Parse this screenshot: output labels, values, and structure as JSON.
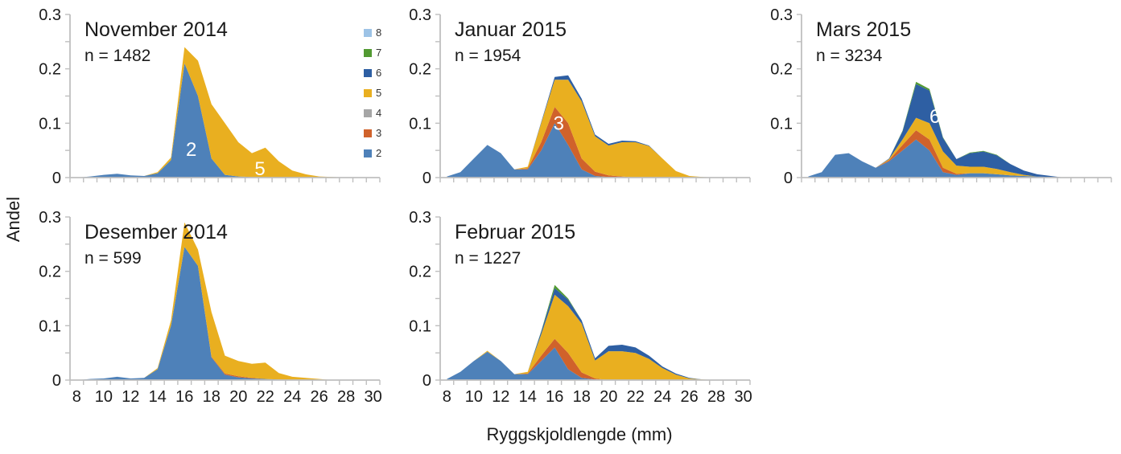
{
  "figure": {
    "background": "#FFFFFF"
  },
  "chart_data": {
    "type": "area",
    "stacked": true,
    "x": [
      8,
      9,
      10,
      11,
      12,
      13,
      14,
      15,
      16,
      17,
      18,
      19,
      20,
      21,
      22,
      23,
      24,
      25,
      26,
      27,
      28,
      29,
      30
    ],
    "xlabel": "Ryggskjoldlengde (mm)",
    "ylabel": "Andel",
    "ylim": [
      0,
      0.3
    ],
    "yticks": [
      0,
      0.1,
      0.2,
      0.3
    ],
    "ytick_labels": [
      "0",
      "0.1",
      "0.2",
      "0.3"
    ],
    "y_minor_step": 0.05,
    "xticks": [
      8,
      10,
      12,
      14,
      16,
      18,
      20,
      22,
      24,
      26,
      28,
      30
    ],
    "xtick_labels": [
      "8",
      "10",
      "12",
      "14",
      "16",
      "18",
      "20",
      "22",
      "24",
      "26",
      "28",
      "30"
    ],
    "grid": false,
    "axis_color": "#BFBFBF",
    "text_color": "#1A1A1A",
    "annotation_color": "#FFFFFF",
    "series_order": [
      "2",
      "3",
      "4",
      "5",
      "6",
      "7",
      "8"
    ],
    "series_colors": {
      "2": "#4E81B9",
      "3": "#D0622B",
      "4": "#A6A6A6",
      "5": "#E9AF20",
      "6": "#2E5FA3",
      "7": "#529A32",
      "8": "#9DC3E6"
    },
    "legend": {
      "position": "right-of-first-panel",
      "entries": [
        {
          "label": "8",
          "color": "#9DC3E6"
        },
        {
          "label": "7",
          "color": "#529A32"
        },
        {
          "label": "6",
          "color": "#2E5FA3"
        },
        {
          "label": "5",
          "color": "#E9AF20"
        },
        {
          "label": "4",
          "color": "#A6A6A6"
        },
        {
          "label": "3",
          "color": "#D0622B"
        },
        {
          "label": "2",
          "color": "#4E81B9"
        }
      ]
    },
    "panels": [
      {
        "title": "November 2014",
        "n_label": "n = 1482",
        "row": 0,
        "col": 0,
        "series": {
          "2": [
            0,
            0.002,
            0.005,
            0.007,
            0.004,
            0.003,
            0.008,
            0.032,
            0.21,
            0.15,
            0.035,
            0.005,
            0.002,
            0.001,
            0.001,
            0,
            0,
            0,
            0,
            0,
            0,
            0,
            0
          ],
          "5": [
            0,
            0,
            0,
            0,
            0,
            0,
            0.002,
            0.005,
            0.03,
            0.065,
            0.1,
            0.095,
            0.063,
            0.044,
            0.054,
            0.03,
            0.013,
            0.006,
            0.002,
            0.001,
            0,
            0,
            0
          ]
        },
        "annotations": [
          {
            "text": "2",
            "x": 16.5,
            "y": 0.052
          },
          {
            "text": "5",
            "x": 21.6,
            "y": 0.016
          }
        ]
      },
      {
        "title": "Januar 2015",
        "n_label": "n = 1954",
        "row": 0,
        "col": 1,
        "series": {
          "2": [
            0.002,
            0.01,
            0.035,
            0.06,
            0.045,
            0.015,
            0.015,
            0.05,
            0.1,
            0.06,
            0.015,
            0.003,
            0.001,
            0.001,
            0,
            0,
            0,
            0,
            0,
            0,
            0,
            0,
            0
          ],
          "3": [
            0,
            0,
            0,
            0,
            0,
            0,
            0.002,
            0.015,
            0.03,
            0.04,
            0.02,
            0.008,
            0.003,
            0.001,
            0,
            0,
            0,
            0,
            0,
            0,
            0,
            0,
            0
          ],
          "5": [
            0,
            0,
            0,
            0,
            0,
            0,
            0.003,
            0.035,
            0.05,
            0.08,
            0.105,
            0.065,
            0.055,
            0.063,
            0.065,
            0.058,
            0.035,
            0.012,
            0.003,
            0.001,
            0,
            0,
            0
          ],
          "6": [
            0,
            0,
            0,
            0,
            0,
            0,
            0,
            0.002,
            0.005,
            0.008,
            0.005,
            0.003,
            0.003,
            0.003,
            0.002,
            0.001,
            0,
            0,
            0,
            0,
            0,
            0,
            0
          ]
        },
        "annotations": [
          {
            "text": "3",
            "x": 16.3,
            "y": 0.1
          }
        ]
      },
      {
        "title": "Mars 2015",
        "n_label": "n = 3234",
        "row": 0,
        "col": 2,
        "series": {
          "2": [
            0.002,
            0.01,
            0.042,
            0.045,
            0.03,
            0.018,
            0.03,
            0.05,
            0.07,
            0.05,
            0.01,
            0.005,
            0.008,
            0.008,
            0.006,
            0.004,
            0.003,
            0.002,
            0.001,
            0,
            0,
            0,
            0
          ],
          "3": [
            0,
            0,
            0,
            0,
            0,
            0,
            0.002,
            0.01,
            0.017,
            0.02,
            0.008,
            0.002,
            0,
            0,
            0,
            0,
            0,
            0,
            0,
            0,
            0,
            0,
            0
          ],
          "5": [
            0,
            0,
            0,
            0,
            0,
            0,
            0.002,
            0.01,
            0.023,
            0.03,
            0.03,
            0.015,
            0.012,
            0.012,
            0.01,
            0.006,
            0.002,
            0,
            0,
            0,
            0,
            0,
            0
          ],
          "6": [
            0,
            0,
            0,
            0,
            0,
            0,
            0.001,
            0.015,
            0.062,
            0.06,
            0.025,
            0.012,
            0.025,
            0.028,
            0.025,
            0.015,
            0.008,
            0.004,
            0.002,
            0,
            0,
            0,
            0
          ],
          "7": [
            0,
            0,
            0,
            0,
            0,
            0,
            0,
            0.001,
            0.004,
            0.003,
            0.001,
            0,
            0.001,
            0.001,
            0.001,
            0,
            0,
            0,
            0,
            0,
            0,
            0,
            0
          ]
        },
        "annotations": [
          {
            "text": "6",
            "x": 17.4,
            "y": 0.112
          }
        ]
      },
      {
        "title": "Desember 2014",
        "n_label": "n = 599",
        "row": 1,
        "col": 0,
        "series": {
          "2": [
            0,
            0.002,
            0.003,
            0.006,
            0.003,
            0.004,
            0.02,
            0.1,
            0.245,
            0.21,
            0.042,
            0.01,
            0.005,
            0.003,
            0.002,
            0.001,
            0,
            0,
            0,
            0,
            0,
            0,
            0
          ],
          "3": [
            0,
            0,
            0,
            0,
            0,
            0,
            0,
            0,
            0,
            0,
            0.001,
            0.002,
            0.002,
            0.001,
            0,
            0,
            0,
            0,
            0,
            0,
            0,
            0,
            0
          ],
          "5": [
            0,
            0,
            0,
            0,
            0,
            0,
            0.002,
            0.01,
            0.045,
            0.03,
            0.082,
            0.033,
            0.028,
            0.026,
            0.03,
            0.012,
            0.006,
            0.004,
            0.002,
            0,
            0,
            0,
            0
          ]
        },
        "annotations": []
      },
      {
        "title": "Februar 2015",
        "n_label": "n = 1227",
        "row": 1,
        "col": 1,
        "series": {
          "2": [
            0.002,
            0.015,
            0.035,
            0.052,
            0.035,
            0.011,
            0.011,
            0.035,
            0.06,
            0.02,
            0.004,
            0.001,
            0,
            0,
            0,
            0,
            0,
            0,
            0,
            0,
            0,
            0,
            0
          ],
          "3": [
            0,
            0,
            0,
            0,
            0,
            0,
            0.001,
            0.01,
            0.016,
            0.03,
            0.01,
            0.002,
            0,
            0,
            0,
            0,
            0,
            0,
            0,
            0,
            0,
            0,
            0
          ],
          "5": [
            0,
            0,
            0,
            0.002,
            0,
            0,
            0.003,
            0.039,
            0.081,
            0.086,
            0.09,
            0.033,
            0.053,
            0.053,
            0.05,
            0.039,
            0.022,
            0.01,
            0.003,
            0.001,
            0,
            0,
            0
          ],
          "6": [
            0,
            0,
            0,
            0,
            0,
            0,
            0,
            0.005,
            0.012,
            0.012,
            0.006,
            0.004,
            0.01,
            0.012,
            0.01,
            0.006,
            0.003,
            0.002,
            0.001,
            0,
            0,
            0,
            0
          ],
          "7": [
            0,
            0,
            0,
            0,
            0,
            0,
            0,
            0.001,
            0.006,
            0.002,
            0,
            0,
            0,
            0,
            0,
            0,
            0,
            0,
            0,
            0,
            0,
            0,
            0
          ]
        },
        "annotations": []
      }
    ]
  }
}
